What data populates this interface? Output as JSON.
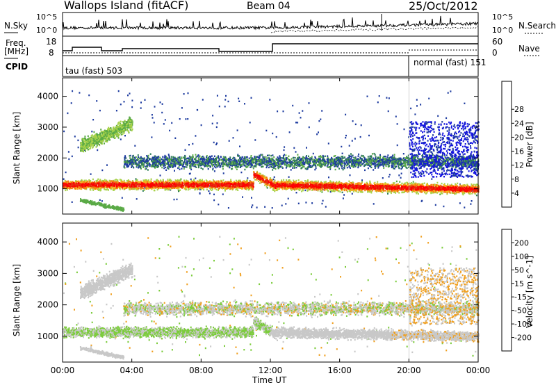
{
  "header": {
    "station": "Wallops Island (fitACF)",
    "beam": "Beam 04",
    "date": "25/Oct/2012"
  },
  "top_panels": {
    "nsky_label": "N.Sky",
    "nsearch_label": "N.Search",
    "log_tick_top": "10^5",
    "log_tick_bottom": "10^0",
    "freq_label": "Freq.",
    "freq_unit": "[MHz]",
    "freq_ticks": [
      "18",
      "8"
    ],
    "nave_label": "Nave",
    "nave_ticks": [
      "60",
      "0"
    ],
    "cpid_label": "CPID",
    "cpid_segments": [
      {
        "label": "tau (fast) 503"
      },
      {
        "label": "normal (fast) 151"
      }
    ]
  },
  "chart_data": [
    {
      "type": "heatmap",
      "title": "",
      "xlabel": "",
      "ylabel": "Slant Range [km]",
      "x_ticks": [
        "00:00",
        "04:00",
        "08:00",
        "12:00",
        "16:00",
        "20:00",
        "00:00"
      ],
      "y_ticks": [
        "1000",
        "2000",
        "3000",
        "4000"
      ],
      "xlim": [
        0,
        24
      ],
      "ylim": [
        180,
        4600
      ],
      "colorbar": {
        "label": "Power [dB]",
        "ticks": [
          "4",
          "8",
          "12",
          "16",
          "20",
          "24",
          "28"
        ],
        "colors": [
          "#1414e0",
          "#1e3ca0",
          "#2e7d55",
          "#5aaa46",
          "#a8d24a",
          "#f2b41c",
          "#f27a10",
          "#e23212",
          "#ff0000"
        ]
      },
      "features": [
        {
          "band": "main echo",
          "range_km": [
            900,
            1300
          ],
          "time_hr": [
            0,
            24
          ],
          "power_db": 24
        },
        {
          "band": "upper echo",
          "range_km": [
            1600,
            2200
          ],
          "time_hr": [
            4,
            24
          ],
          "power_db": 10
        },
        {
          "band": "early arc",
          "range_km": [
            2300,
            3300
          ],
          "time_hr": [
            1.5,
            4
          ],
          "power_db": 14
        }
      ]
    },
    {
      "type": "heatmap",
      "title": "",
      "xlabel": "Time UT",
      "ylabel": "Slant Range [km]",
      "x_ticks": [
        "00:00",
        "04:00",
        "08:00",
        "12:00",
        "16:00",
        "20:00",
        "00:00"
      ],
      "y_ticks": [
        "1000",
        "2000",
        "3000",
        "4000"
      ],
      "xlim": [
        0,
        24
      ],
      "ylim": [
        180,
        4600
      ],
      "colorbar": {
        "label": "Velocity [m s^-1]",
        "ticks": [
          "200",
          "100",
          "50",
          "15",
          "-15",
          "-50",
          "-100",
          "-200"
        ],
        "colors": [
          "#1e2ab4",
          "#1e6ea0",
          "#2e8b57",
          "#7ccc3c",
          "#c8c8c8",
          "#f0a020",
          "#f07a18",
          "#e83010",
          "#ff0000"
        ]
      },
      "features": [
        {
          "band": "main echo",
          "range_km": [
            900,
            1400
          ],
          "time_hr": [
            0,
            24
          ],
          "velocity": 0
        },
        {
          "band": "early green",
          "range_km": [
            1200,
            1700
          ],
          "time_hr": [
            0,
            12
          ],
          "velocity": 40
        },
        {
          "band": "late mixed",
          "range_km": [
            1500,
            3000
          ],
          "time_hr": [
            20,
            24
          ],
          "velocity": -60
        }
      ]
    }
  ]
}
